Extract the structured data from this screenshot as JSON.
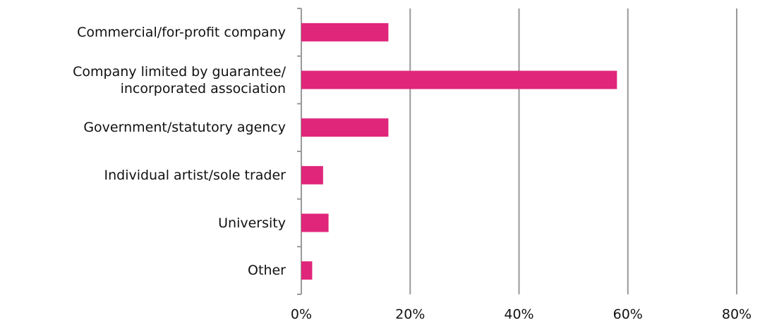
{
  "chart_data": {
    "type": "barh",
    "categories": [
      "Commercial/for-profit company",
      "Company limited by guarantee/\nincorporated association",
      "Government/statutory agency",
      "Individual artist/sole trader",
      "University",
      "Other"
    ],
    "values": [
      16,
      58,
      16,
      4,
      5,
      2
    ],
    "color": "#e0267a",
    "xlim": [
      0,
      80
    ],
    "xticks": [
      {
        "value": 0,
        "label": "0%"
      },
      {
        "value": 20,
        "label": "20%"
      },
      {
        "value": 40,
        "label": "40%"
      },
      {
        "value": 60,
        "label": "60%"
      },
      {
        "value": 80,
        "label": "80%"
      }
    ],
    "grid": true
  }
}
